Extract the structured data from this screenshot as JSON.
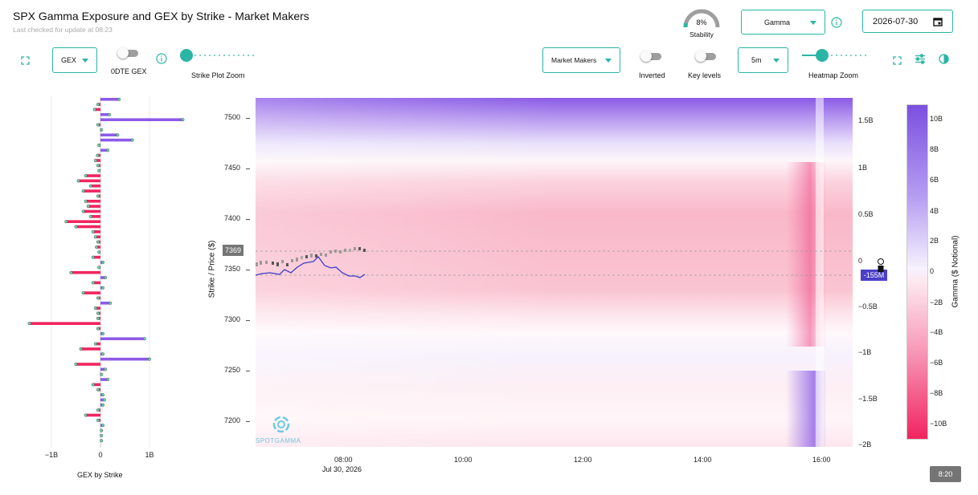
{
  "header": {
    "title": "SPX Gamma Exposure and GEX by Strike - Market Makers",
    "subtitle": "Last checked for update at 08:23",
    "stability_value": "8%",
    "stability_label": "Stability",
    "stability_fraction": 0.08,
    "metric_select": "Gamma",
    "date_value": "2026-07-30"
  },
  "controls": {
    "gex_select": "GEX",
    "zero_dte_label": "0DTE GEX",
    "strike_zoom_label": "Strike Plot Zoom",
    "strike_zoom_level": 0.0,
    "participant_select": "Market Makers",
    "inverted_label": "Inverted",
    "key_levels_label": "Key levels",
    "interval_select": "5m",
    "heatmap_zoom_label": "Heatmap Zoom",
    "heatmap_zoom_level": 0.25
  },
  "icons": {
    "fullscreen_left": "expand-icon",
    "info_left": "info-icon",
    "info_top": "info-icon",
    "calendar": "calendar-icon",
    "fullscreen_right": "expand-icon",
    "settings": "sliders-icon",
    "contrast": "contrast-icon"
  },
  "colors": {
    "accent": "#2ab5a5",
    "positive": "#8c5ae8",
    "negative": "#f2245f",
    "price_line": "#3b3fc4",
    "gex_line_badge": "#3b3fc4",
    "price_badge": "#757575"
  },
  "strike_chart": {
    "xlabel": "GEX by Strike",
    "x_ticks": [
      "−1B",
      "0",
      "1B"
    ]
  },
  "heatmap": {
    "ylabel": "Strike / Price ($)",
    "y_ticks": [
      "7500",
      "7450",
      "7400",
      "7350",
      "7300",
      "7250",
      "7200"
    ],
    "x_ticks": [
      "08:00",
      "10:00",
      "12:00",
      "14:00",
      "16:00"
    ],
    "x_date": "Jul 30, 2026",
    "right_ticks": [
      "1.5B",
      "1B",
      "0.5B",
      "0",
      "−0.5B",
      "−1B",
      "−1.5B",
      "−2B"
    ],
    "price_badge": "7369",
    "gex_badge": "-155M",
    "watermark": "SPOTGAMMA"
  },
  "colorbar": {
    "label": "Gamma ($ Notional)",
    "ticks": [
      "10B",
      "8B",
      "6B",
      "4B",
      "2B",
      "0",
      "−2B",
      "−4B",
      "−6B",
      "−8B",
      "−10B"
    ]
  },
  "time_badge": "8:20",
  "chart_data": {
    "type": "bar",
    "title": "",
    "xlabel": "GEX by Strike",
    "ylabel": "",
    "xlim": [
      -1.5,
      1.7
    ],
    "series_unit": "B",
    "strikes": [
      7520,
      7515,
      7510,
      7505,
      7500,
      7495,
      7490,
      7485,
      7480,
      7475,
      7470,
      7465,
      7460,
      7455,
      7450,
      7445,
      7440,
      7435,
      7430,
      7425,
      7420,
      7415,
      7410,
      7405,
      7400,
      7395,
      7390,
      7385,
      7380,
      7375,
      7370,
      7365,
      7360,
      7355,
      7350,
      7345,
      7340,
      7335,
      7330,
      7325,
      7320,
      7315,
      7310,
      7305,
      7300,
      7295,
      7290,
      7285,
      7280,
      7275,
      7270,
      7265,
      7260,
      7255,
      7250,
      7245,
      7240,
      7235,
      7230,
      7225,
      7220,
      7215,
      7210,
      7205,
      7200,
      7195,
      7190,
      7185
    ],
    "values": [
      0.38,
      -0.05,
      -0.12,
      0.18,
      1.68,
      -0.05,
      0.02,
      0.35,
      0.65,
      -0.03,
      0.15,
      -0.06,
      -0.1,
      -0.05,
      -0.03,
      -0.3,
      -0.45,
      -0.2,
      -0.35,
      -0.05,
      -0.3,
      -0.25,
      -0.35,
      -0.2,
      -0.7,
      -0.5,
      -0.15,
      -0.1,
      -0.05,
      -0.08,
      -0.03,
      -0.15,
      0.05,
      -0.03,
      -0.6,
      0.1,
      -0.15,
      0.05,
      -0.35,
      -0.05,
      0.2,
      -0.1,
      -0.05,
      -0.05,
      -1.45,
      -0.05,
      0.05,
      0.9,
      -0.1,
      -0.4,
      0.05,
      1.0,
      -0.5,
      0.1,
      0.02,
      0.15,
      -0.15,
      -0.05,
      0.05,
      0.08,
      0.05,
      -0.05,
      -0.3,
      -0.05,
      0.05,
      0.02,
      0.02,
      0.02
    ]
  }
}
